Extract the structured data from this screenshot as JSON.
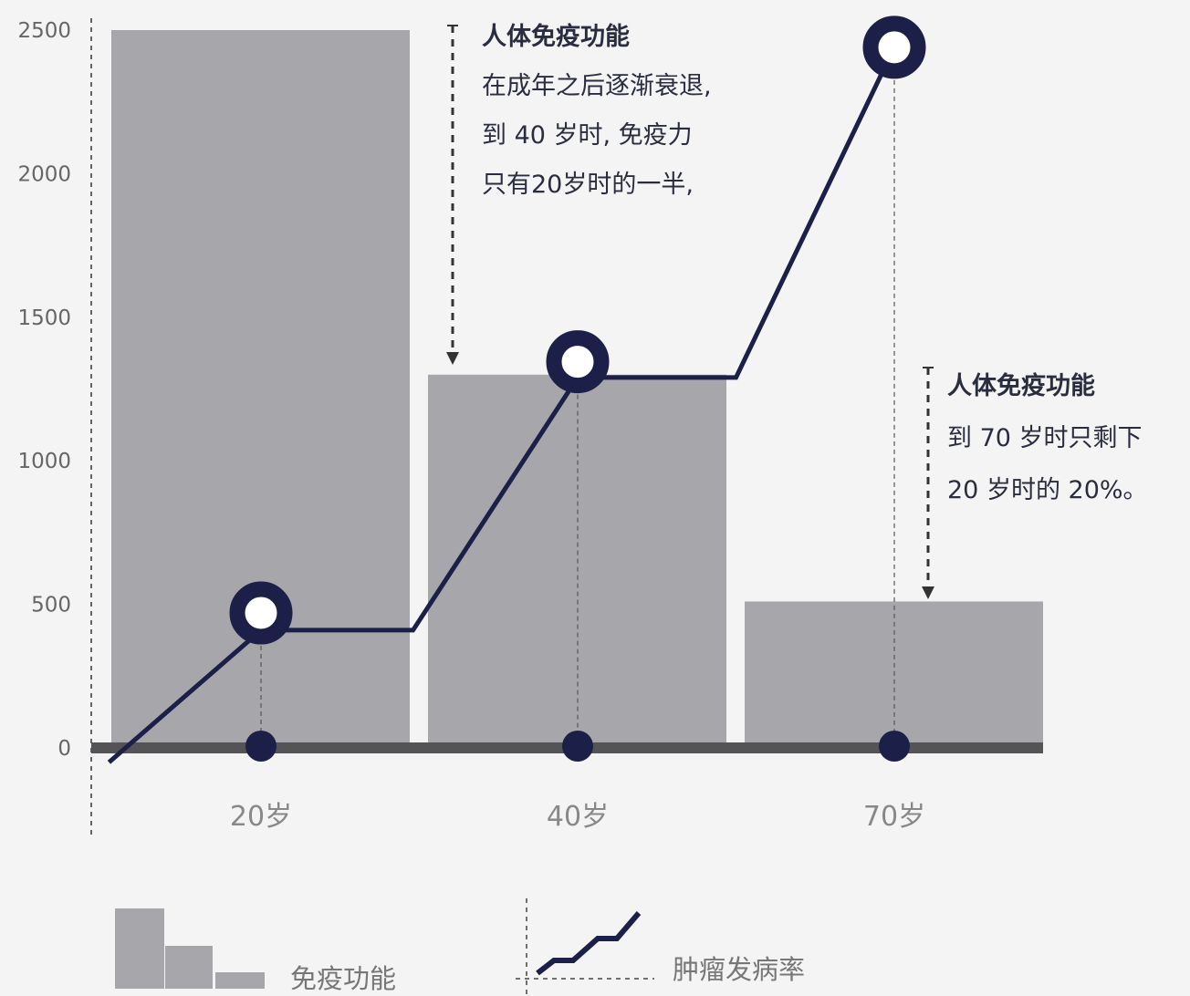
{
  "chart_data": {
    "type": "bar",
    "categories": [
      "20岁",
      "40岁",
      "70岁"
    ],
    "ylim": [
      0,
      2500
    ],
    "yticks": [
      "0",
      "500",
      "1000",
      "1500",
      "2000",
      "2500"
    ],
    "grid": false,
    "series": [
      {
        "name": "免疫功能",
        "type": "bar",
        "values": [
          2500,
          1300,
          510
        ]
      },
      {
        "name": "肿瘤发病率",
        "type": "line",
        "points": [
          {
            "x": -0.48,
            "y": -50
          },
          {
            "x": 0,
            "y": 410
          },
          {
            "x": 0.48,
            "y": 410
          },
          {
            "x": 1,
            "y": 1290
          },
          {
            "x": 1.5,
            "y": 1290
          },
          {
            "x": 2,
            "y": 2440
          }
        ],
        "markers": [
          {
            "x": 0,
            "y": 470
          },
          {
            "x": 1,
            "y": 1345
          },
          {
            "x": 2,
            "y": 2440
          }
        ]
      }
    ],
    "legend": {
      "position": "bottom",
      "items": [
        "免疫功能",
        "肿瘤发病率"
      ]
    },
    "annotations": [
      {
        "title": "人体免疫功能",
        "lines": [
          "在成年之后逐渐衰退,",
          "到 40 岁时, 免疫力",
          "只有20岁时的一半,"
        ]
      },
      {
        "title": "人体免疫功能",
        "lines": [
          "到 70 岁时只剩下",
          "20 岁时的 20%。"
        ]
      }
    ],
    "colors": {
      "bar": "#a7a6ab",
      "line": "#1c1f48",
      "axis": "#545457",
      "text": "#2a2d3e",
      "tick": "#666"
    }
  }
}
